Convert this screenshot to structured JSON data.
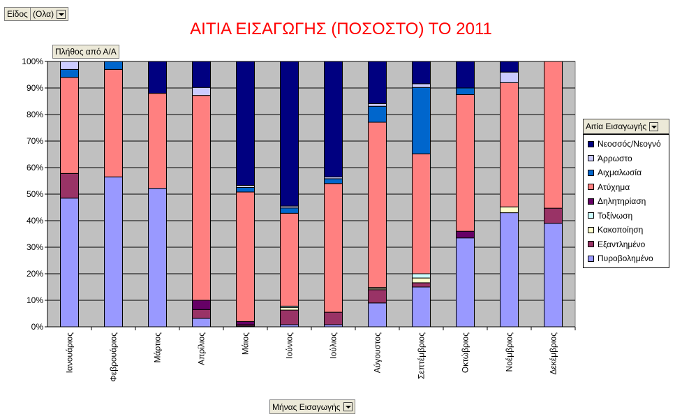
{
  "filter": {
    "label": "Είδος",
    "value": "(Ολα)"
  },
  "data_field": {
    "label": "Πλήθος από Α/Α"
  },
  "legend_title": "Αιτία Εισαγωγής",
  "axis_field": {
    "label": "Μήνας Εισαγωγής"
  },
  "chart_data": {
    "type": "bar",
    "stacked": "percent",
    "title": "ΑΙΤΙΑ ΕΙΣΑΓΩΓΗΣ (ΠΟΣΟΣΤΟ) ΤΟ 2011",
    "xlabel": "",
    "ylabel": "",
    "ylim": [
      0,
      100
    ],
    "yticks": [
      "0%",
      "10%",
      "20%",
      "30%",
      "40%",
      "50%",
      "60%",
      "70%",
      "80%",
      "90%",
      "100%"
    ],
    "grid": true,
    "legend_position": "right",
    "categories": [
      "Ιανουάριος",
      "Φεβρουάριος",
      "Μάρτιος",
      "Απρίλιος",
      "Μάιος",
      "Ιούνιος",
      "Ιούλιος",
      "Αύγουστος",
      "Σεπτέμβριος",
      "Οκτώβριος",
      "Νοέμβριος",
      "Δεκέμβριος"
    ],
    "series": [
      {
        "name": "Πυροβολημένο",
        "color": "#9999ff",
        "values": [
          48.5,
          56.5,
          52.2,
          3.2,
          0.3,
          0.8,
          0.8,
          9,
          15,
          33.5,
          43,
          39
        ]
      },
      {
        "name": "Εξαντλημένο",
        "color": "#993366",
        "values": [
          9.3,
          0,
          0,
          3.3,
          0.5,
          5.5,
          4.7,
          5,
          1.6,
          0,
          0,
          5.7
        ]
      },
      {
        "name": "Κακοποίηση",
        "color": "#ffffcc",
        "values": [
          0,
          0,
          0,
          0,
          0,
          1,
          0,
          0.5,
          1.8,
          0,
          2.2,
          0
        ]
      },
      {
        "name": "Τοξίνωση",
        "color": "#ccffff",
        "values": [
          0,
          0,
          0,
          0,
          0,
          0.5,
          0,
          0.3,
          1.6,
          0,
          0,
          0
        ]
      },
      {
        "name": "Δηλητηρίαση",
        "color": "#660066",
        "values": [
          0,
          0,
          0,
          3.5,
          1.2,
          0,
          0,
          0,
          0,
          2.5,
          0,
          0
        ]
      },
      {
        "name": "Ατύχημα",
        "color": "#ff8080",
        "values": [
          36.2,
          40.5,
          35.8,
          77.2,
          48.8,
          35,
          48.5,
          62.3,
          45.2,
          51.5,
          46.8,
          55.3
        ]
      },
      {
        "name": "Αιχμαλωσία",
        "color": "#0066cc",
        "values": [
          3,
          3,
          0,
          0,
          1.7,
          2,
          1.8,
          6,
          25,
          2.5,
          0,
          0
        ]
      },
      {
        "name": "Άρρωστο",
        "color": "#ccccff",
        "values": [
          3,
          0,
          0,
          3,
          0.8,
          0.7,
          0.7,
          1,
          1.4,
          0,
          4,
          0
        ]
      },
      {
        "name": "Νεοσσός/Νεογνό",
        "color": "#000080",
        "values": [
          0,
          0,
          12,
          9.8,
          46.7,
          54.5,
          43.5,
          15.9,
          8.4,
          10,
          4,
          0
        ]
      }
    ]
  }
}
